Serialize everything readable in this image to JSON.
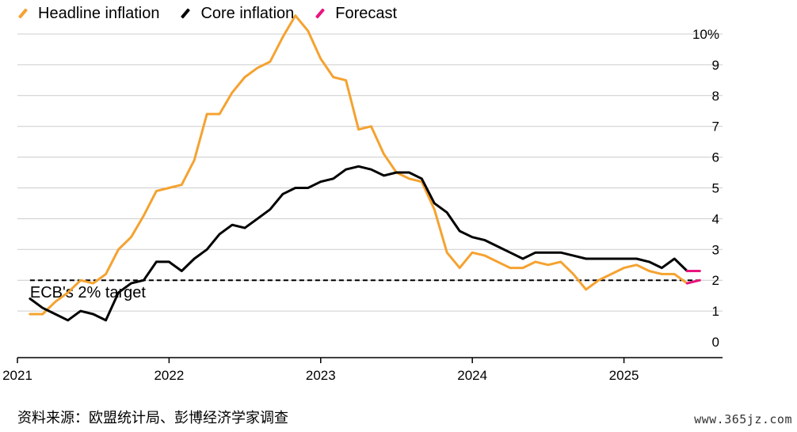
{
  "legend": {
    "headline": "Headline inflation",
    "core": "Core inflation",
    "forecast": "Forecast"
  },
  "colors": {
    "headline": "#f5a230",
    "core": "#000000",
    "forecast": "#e8157e",
    "grid": "#cccccc"
  },
  "annotation": "ECB's 2% target",
  "source": "资料来源：欧盟统计局、彭博经济学家调查",
  "watermark": "www.365jz.com",
  "chart_data": {
    "type": "line",
    "ylim": [
      0,
      10
    ],
    "yticks": [
      "0",
      "1",
      "2",
      "3",
      "4",
      "5",
      "6",
      "7",
      "8",
      "9",
      "10%"
    ],
    "xlim": [
      2021.0,
      2025.65
    ],
    "xticks": [
      {
        "value": 2021,
        "label": "2021"
      },
      {
        "value": 2022,
        "label": "2022"
      },
      {
        "value": 2023,
        "label": "2023"
      },
      {
        "value": 2024,
        "label": "2024"
      },
      {
        "value": 2025,
        "label": "2025"
      }
    ],
    "target": 2,
    "series": [
      {
        "name": "Headline inflation",
        "start": 2021.083,
        "values": [
          0.9,
          0.9,
          1.3,
          1.6,
          2.0,
          1.9,
          2.2,
          3.0,
          3.4,
          4.1,
          4.9,
          5.0,
          5.1,
          5.9,
          7.4,
          7.4,
          8.1,
          8.6,
          8.9,
          9.1,
          9.9,
          10.6,
          10.1,
          9.2,
          8.6,
          8.5,
          6.9,
          7.0,
          6.1,
          5.5,
          5.3,
          5.2,
          4.3,
          2.9,
          2.4,
          2.9,
          2.8,
          2.6,
          2.4,
          2.4,
          2.6,
          2.5,
          2.6,
          2.2,
          1.7,
          2.0,
          2.2,
          2.4,
          2.5,
          2.3,
          2.2,
          2.2,
          1.9
        ]
      },
      {
        "name": "Core inflation",
        "start": 2021.083,
        "values": [
          1.4,
          1.1,
          0.9,
          0.7,
          1.0,
          0.9,
          0.7,
          1.6,
          1.9,
          2.0,
          2.6,
          2.6,
          2.3,
          2.7,
          3.0,
          3.5,
          3.8,
          3.7,
          4.0,
          4.3,
          4.8,
          5.0,
          5.0,
          5.2,
          5.3,
          5.6,
          5.7,
          5.6,
          5.4,
          5.5,
          5.5,
          5.3,
          4.5,
          4.2,
          3.6,
          3.4,
          3.3,
          3.1,
          2.9,
          2.7,
          2.9,
          2.9,
          2.9,
          2.8,
          2.7,
          2.7,
          2.7,
          2.7,
          2.7,
          2.6,
          2.4,
          2.7,
          2.3
        ]
      },
      {
        "name": "Forecast",
        "segments": [
          {
            "x": [
              2025.417,
              2025.5
            ],
            "values": [
              2.3,
              2.3
            ]
          },
          {
            "x": [
              2025.417,
              2025.5
            ],
            "values": [
              1.9,
              2.0
            ]
          }
        ]
      }
    ]
  }
}
